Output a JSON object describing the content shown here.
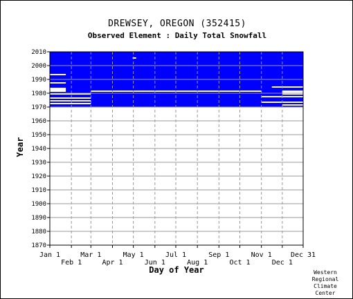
{
  "header": {
    "title": "DREWSEY, OREGON   (352415)",
    "subtitle": "Observed Element : Daily Total Snowfall"
  },
  "credit": {
    "lines": [
      "Western",
      "Regional",
      "Climate",
      "Center"
    ]
  },
  "colors": {
    "data": "#0000ff",
    "grid": "#999999",
    "axis": "#000000",
    "background": "#ffffff"
  },
  "chart_data": {
    "type": "heatmap",
    "title": "DREWSEY, OREGON   (352415)",
    "subtitle": "Observed Element : Daily Total Snowfall",
    "xlabel": "Day of Year",
    "ylabel": "Year",
    "xlim": [
      1,
      365
    ],
    "ylim": [
      1870,
      2010
    ],
    "grid": true,
    "x_ticks": [
      {
        "label": "Jan 1",
        "day": 1,
        "row": 0
      },
      {
        "label": "Feb 1",
        "day": 32,
        "row": 1
      },
      {
        "label": "Mar 1",
        "day": 60,
        "row": 0
      },
      {
        "label": "Apr 1",
        "day": 91,
        "row": 1
      },
      {
        "label": "May 1",
        "day": 121,
        "row": 0
      },
      {
        "label": "Jun 1",
        "day": 152,
        "row": 1
      },
      {
        "label": "Jul 1",
        "day": 182,
        "row": 0
      },
      {
        "label": "Aug 1",
        "day": 213,
        "row": 1
      },
      {
        "label": "Sep 1",
        "day": 244,
        "row": 0
      },
      {
        "label": "Oct 1",
        "day": 274,
        "row": 1
      },
      {
        "label": "Nov 1",
        "day": 305,
        "row": 0
      },
      {
        "label": "Dec 1",
        "day": 335,
        "row": 1
      },
      {
        "label": "Dec 31",
        "day": 365,
        "row": 0
      }
    ],
    "y_ticks": [
      1870,
      1880,
      1890,
      1900,
      1910,
      1920,
      1930,
      1940,
      1950,
      1960,
      1970,
      1980,
      1990,
      2000,
      2010
    ],
    "series": [
      {
        "value": "observed",
        "color": "#0000ff",
        "regions": [
          {
            "day_start": 1,
            "day_end": 365,
            "year_start": 1970,
            "year_end": 2010
          },
          {
            "day_start": 1,
            "day_end": 60,
            "year_start": 1969,
            "year_end": 1970
          },
          {
            "day_start": 305,
            "day_end": 365,
            "year_start": 1969,
            "year_end": 1970
          }
        ]
      },
      {
        "value": "missing",
        "color": "#ffffff",
        "regions": [
          {
            "day_start": 1,
            "day_end": 24,
            "year_start": 1981,
            "year_end": 1984
          },
          {
            "day_start": 1,
            "day_end": 60,
            "year_start": 1979,
            "year_end": 1980
          },
          {
            "day_start": 1,
            "day_end": 60,
            "year_start": 1976,
            "year_end": 1977
          },
          {
            "day_start": 1,
            "day_end": 60,
            "year_start": 1974,
            "year_end": 1975
          },
          {
            "day_start": 1,
            "day_end": 60,
            "year_start": 1972,
            "year_end": 1973
          },
          {
            "day_start": 60,
            "day_end": 305,
            "year_start": 1981,
            "year_end": 1982
          },
          {
            "day_start": 305,
            "day_end": 365,
            "year_start": 1977,
            "year_end": 1978
          },
          {
            "day_start": 305,
            "day_end": 365,
            "year_start": 1973,
            "year_end": 1974
          },
          {
            "day_start": 335,
            "day_end": 365,
            "year_start": 1971,
            "year_end": 1972
          },
          {
            "day_start": 335,
            "day_end": 365,
            "year_start": 1979,
            "year_end": 1982
          },
          {
            "day_start": 1,
            "day_end": 24,
            "year_start": 1993,
            "year_end": 1994
          },
          {
            "day_start": 1,
            "day_end": 24,
            "year_start": 1987,
            "year_end": 1988
          },
          {
            "day_start": 320,
            "day_end": 365,
            "year_start": 1984,
            "year_end": 1985
          },
          {
            "day_start": 120,
            "day_end": 125,
            "year_start": 2005,
            "year_end": 2006
          },
          {
            "day_start": 1,
            "day_end": 365,
            "year_start": 1969,
            "year_end": 1970
          }
        ]
      }
    ]
  }
}
